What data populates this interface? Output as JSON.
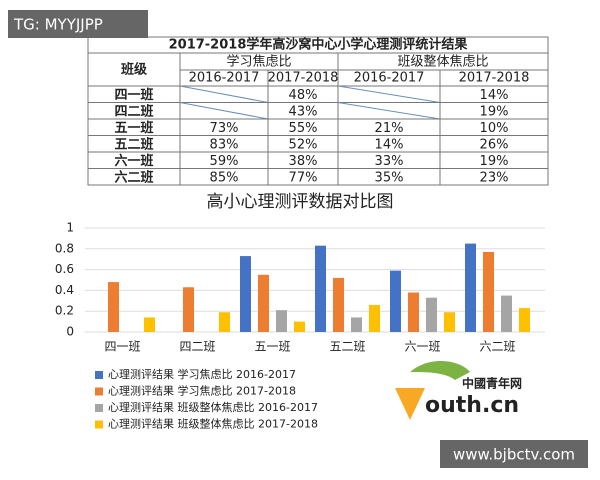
{
  "watermark": "TG: MYYJJPP",
  "footer_url": "www.bjbctv.com",
  "logo": {
    "name": "中國青年网",
    "domain": "outh.cn"
  },
  "table": {
    "title": "2017-2018学年高沙窝中心小学心理测评统计结果",
    "header": {
      "class": "班级",
      "groups": [
        "学习焦虑比",
        "班级整体焦虑比"
      ],
      "years": [
        "2016-2017",
        "2017-2018",
        "2016-2017",
        "2017-2018"
      ]
    },
    "rows": [
      [
        "四一班",
        null,
        "48%",
        null,
        "14%"
      ],
      [
        "四二班",
        null,
        "43%",
        null,
        "19%"
      ],
      [
        "五一班",
        "73%",
        "55%",
        "21%",
        "10%"
      ],
      [
        "五二班",
        "83%",
        "52%",
        "14%",
        "26%"
      ],
      [
        "六一班",
        "59%",
        "38%",
        "33%",
        "19%"
      ],
      [
        "六二班",
        "85%",
        "77%",
        "35%",
        "23%"
      ]
    ]
  },
  "chart_data": {
    "type": "bar",
    "title": "高小心理测评数据对比图",
    "categories": [
      "四一班",
      "四二班",
      "五一班",
      "五二班",
      "六一班",
      "六二班"
    ],
    "series": [
      {
        "name": "心理测评结果 学习焦虑比 2016-2017",
        "color": "#4472c4",
        "values": [
          null,
          null,
          0.73,
          0.83,
          0.59,
          0.85
        ]
      },
      {
        "name": "心理测评结果 学习焦虑比 2017-2018",
        "color": "#ed7d31",
        "values": [
          0.48,
          0.43,
          0.55,
          0.52,
          0.38,
          0.77
        ]
      },
      {
        "name": "心理测评结果 班级整体焦虑比 2016-2017",
        "color": "#a5a5a5",
        "values": [
          null,
          null,
          0.21,
          0.14,
          0.33,
          0.35
        ]
      },
      {
        "name": "心理测评结果 班级整体焦虑比 2017-2018",
        "color": "#ffc000",
        "values": [
          0.14,
          0.19,
          0.1,
          0.26,
          0.19,
          0.23
        ]
      }
    ],
    "ylim": [
      0,
      1
    ],
    "yticks": [
      0,
      0.2,
      0.4,
      0.6,
      0.8,
      1
    ],
    "grid": true
  }
}
